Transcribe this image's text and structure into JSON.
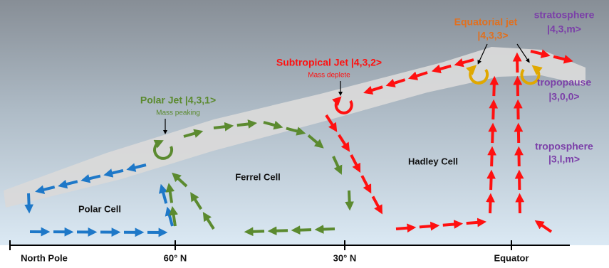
{
  "layers": [
    {
      "name": "stratosphere",
      "state": "|4,3,m>"
    },
    {
      "name": "tropopause",
      "state": "|3,0,0>"
    },
    {
      "name": "troposphere",
      "state": "|3,l,m>"
    }
  ],
  "jets": [
    {
      "name": "Equatorial jet",
      "state": "|4,3,3>"
    },
    {
      "name": "Subtropical Jet |4,3,2>",
      "note": "Mass deplete"
    },
    {
      "name": "Polar Jet |4,3,1>",
      "note": "Mass peaking"
    }
  ],
  "cells": [
    "Hadley Cell",
    "Ferrel Cell",
    "Polar Cell"
  ],
  "axis_labels": [
    "North Pole",
    "60° N",
    "30° N",
    "Equator"
  ]
}
